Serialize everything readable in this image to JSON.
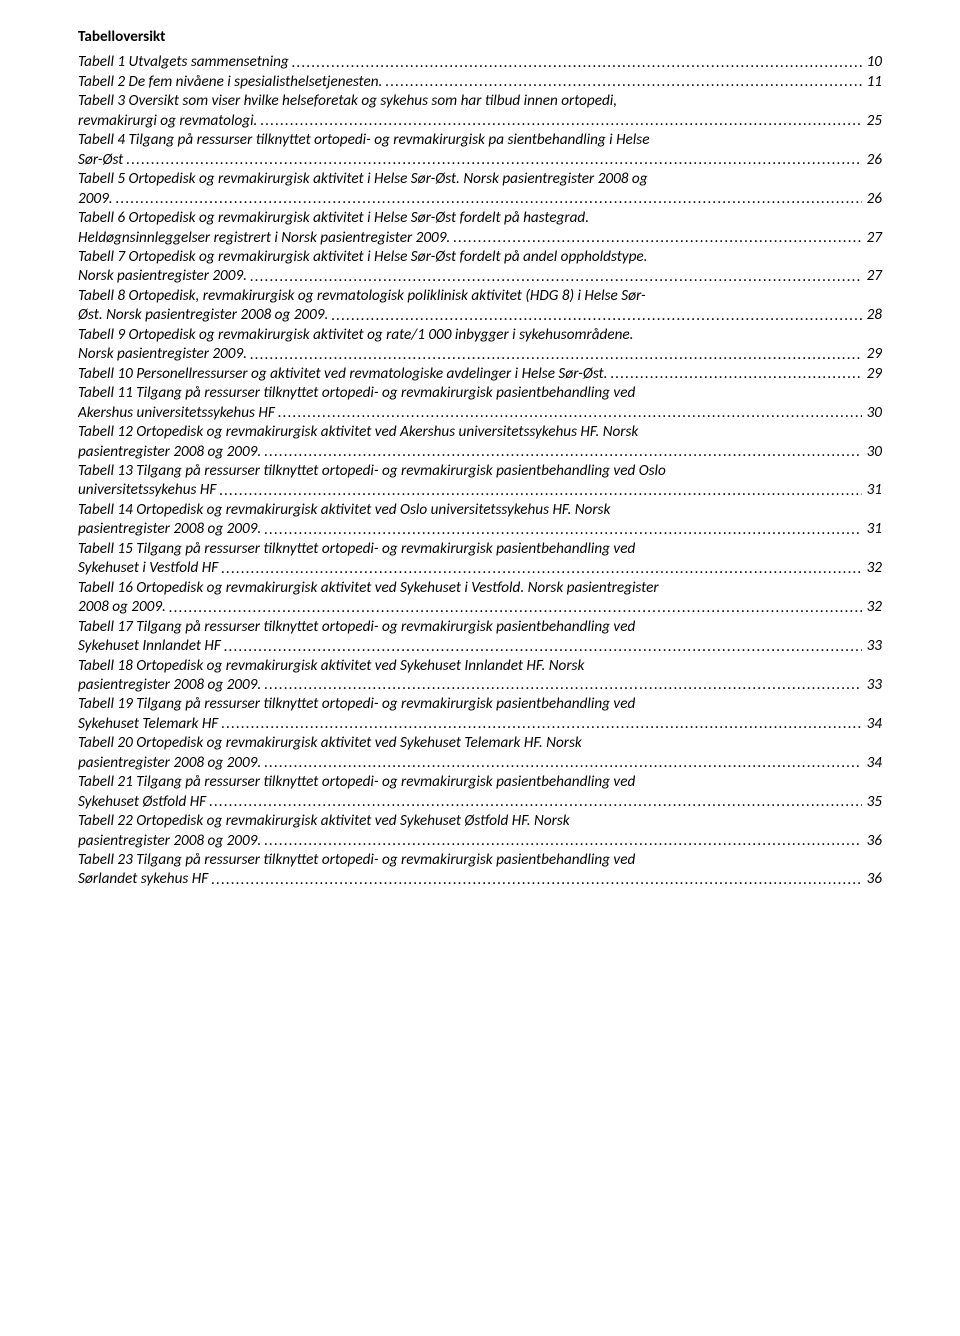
{
  "title": "Tabelloversikt",
  "leader_char": ".",
  "entries": [
    {
      "lines": [
        "Tabell 1 Utvalgets sammensetning"
      ],
      "page": "10"
    },
    {
      "lines": [
        "Tabell 2 De fem nivåene i spesialisthelsetjenesten."
      ],
      "page": "11"
    },
    {
      "lines": [
        "Tabell 3 Oversikt som viser hvilke helseforetak og sykehus som har tilbud innen ortopedi,",
        "revmakirurgi og revmatologi."
      ],
      "page": "25"
    },
    {
      "lines": [
        "Tabell 4 Tilgang på ressurser tilknyttet ortopedi- og revmakirurgisk pa sientbehandling i Helse",
        "Sør-Øst"
      ],
      "page": "26"
    },
    {
      "lines": [
        "Tabell 5 Ortopedisk og revmakirurgisk aktivitet i Helse Sør-Øst. Norsk pasientregister 2008 og",
        "2009."
      ],
      "page": "26"
    },
    {
      "lines": [
        "Tabell 6 Ortopedisk og revmakirurgisk aktivitet i Helse Sør-Øst fordelt på hastegrad.",
        "Heldøgnsinnleggelser registrert i Norsk pasientregister 2009."
      ],
      "page": "27"
    },
    {
      "lines": [
        "Tabell 7 Ortopedisk og revmakirurgisk aktivitet i Helse Sør-Øst fordelt på andel oppholdstype.",
        "Norsk pasientregister 2009."
      ],
      "page": "27"
    },
    {
      "lines": [
        "Tabell 8 Ortopedisk, revmakirurgisk og revmatologisk poliklinisk aktivitet (HDG 8) i Helse Sør-",
        "Øst. Norsk pasientregister 2008 og 2009."
      ],
      "page": "28"
    },
    {
      "lines": [
        "Tabell 9 Ortopedisk og revmakirurgisk aktivitet og rate/1 000 inbygger i sykehusområdene.",
        "Norsk pasientregister 2009."
      ],
      "page": "29"
    },
    {
      "lines": [
        "Tabell 10 Personellressurser og aktivitet ved revmatologiske avdelinger i Helse Sør-Øst."
      ],
      "page": "29"
    },
    {
      "lines": [
        "Tabell 11 Tilgang på ressurser tilknyttet ortopedi- og revmakirurgisk pasientbehandling ved",
        "Akershus universitetssykehus HF"
      ],
      "page": "30"
    },
    {
      "lines": [
        "Tabell 12 Ortopedisk og revmakirurgisk aktivitet ved Akershus universitetssykehus HF. Norsk",
        "pasientregister 2008 og 2009."
      ],
      "page": "30"
    },
    {
      "lines": [
        "Tabell 13 Tilgang på ressurser tilknyttet ortopedi- og revmakirurgisk pasientbehandling ved Oslo",
        "universitetssykehus HF"
      ],
      "page": "31"
    },
    {
      "lines": [
        "Tabell 14 Ortopedisk og revmakirurgisk aktivitet ved Oslo universitetssykehus HF. Norsk",
        "pasientregister 2008 og 2009."
      ],
      "page": "31"
    },
    {
      "lines": [
        "Tabell 15 Tilgang på ressurser tilknyttet ortopedi- og revmakirurgisk pasientbehandling ved",
        "Sykehuset i Vestfold HF"
      ],
      "page": "32"
    },
    {
      "lines": [
        "Tabell 16 Ortopedisk og revmakirurgisk aktivitet ved Sykehuset i Vestfold. Norsk pasientregister",
        "2008 og 2009."
      ],
      "page": "32"
    },
    {
      "lines": [
        "Tabell 17 Tilgang på ressurser tilknyttet ortopedi- og revmakirurgisk pasientbehandling ved",
        "Sykehuset Innlandet HF"
      ],
      "page": "33"
    },
    {
      "lines": [
        "Tabell 18 Ortopedisk og revmakirurgisk aktivitet ved Sykehuset Innlandet HF. Norsk",
        "pasientregister 2008 og 2009."
      ],
      "page": "33"
    },
    {
      "lines": [
        "Tabell 19 Tilgang på ressurser tilknyttet ortopedi- og revmakirurgisk pasientbehandling ved",
        "Sykehuset Telemark HF"
      ],
      "page": "34"
    },
    {
      "lines": [
        "Tabell 20 Ortopedisk og revmakirurgisk aktivitet ved Sykehuset Telemark HF. Norsk",
        "pasientregister 2008 og 2009."
      ],
      "page": "34"
    },
    {
      "lines": [
        "Tabell 21 Tilgang på ressurser tilknyttet ortopedi- og revmakirurgisk pasientbehandling ved",
        "Sykehuset Østfold HF"
      ],
      "page": "35"
    },
    {
      "lines": [
        "Tabell 22 Ortopedisk og revmakirurgisk aktivitet ved Sykehuset Østfold HF. Norsk",
        "pasientregister 2008 og 2009."
      ],
      "page": "36"
    },
    {
      "lines": [
        "Tabell 23 Tilgang på ressurser tilknyttet ortopedi- og revmakirurgisk pasientbehandling ved",
        "Sørlandet sykehus HF"
      ],
      "page": "36"
    }
  ]
}
